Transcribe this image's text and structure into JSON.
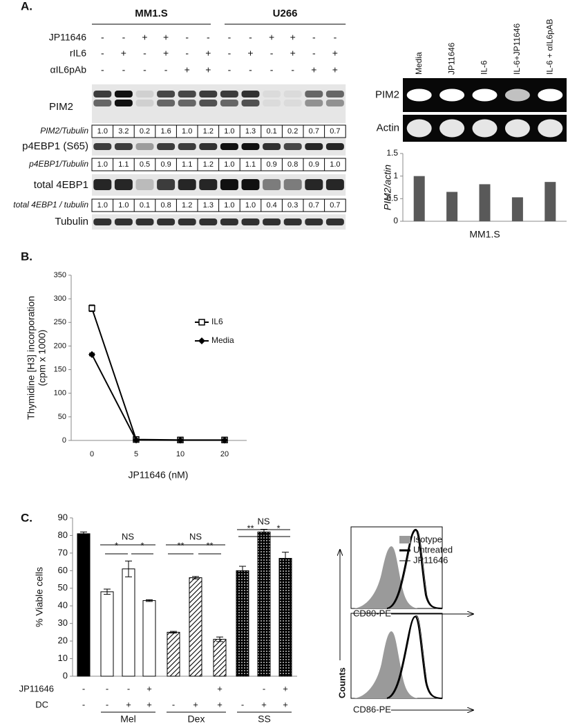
{
  "panel_a": {
    "label": "A.",
    "groups": [
      "MM1.S",
      "U266"
    ],
    "treatments": [
      {
        "name": "JP11646",
        "signs": [
          "-",
          "-",
          "+",
          "+",
          "-",
          "-",
          "-",
          "-",
          "+",
          "+",
          "-",
          "-"
        ]
      },
      {
        "name": "rIL6",
        "signs": [
          "-",
          "+",
          "-",
          "+",
          "-",
          "+",
          "-",
          "+",
          "-",
          "+",
          "-",
          "+"
        ]
      },
      {
        "name": "αIL6pAb",
        "signs": [
          "-",
          "-",
          "-",
          "-",
          "+",
          "+",
          "-",
          "-",
          "-",
          "-",
          "+",
          "+"
        ]
      }
    ],
    "blots": [
      {
        "name": "PIM2",
        "ratio_name": "PIM2/Tubulin",
        "ratios": [
          "1.0",
          "3.2",
          "0.2",
          "1.6",
          "1.0",
          "1.2",
          "1.0",
          "1.3",
          "0.1",
          "0.2",
          "0.7",
          "0.7"
        ]
      },
      {
        "name": "p4EBP1 (S65)",
        "ratio_name": "p4EBP1/Tubulin",
        "ratios": [
          "1.0",
          "1.1",
          "0.5",
          "0.9",
          "1.1",
          "1.2",
          "1.0",
          "1.1",
          "0.9",
          "0.8",
          "0.9",
          "1.0"
        ]
      },
      {
        "name": "total 4EBP1",
        "ratio_name": "total 4EBP1 / tubulin",
        "ratios": [
          "1.0",
          "1.0",
          "0.1",
          "0.8",
          "1.2",
          "1.3",
          "1.0",
          "1.0",
          "0.4",
          "0.3",
          "0.7",
          "0.7"
        ]
      },
      {
        "name": "Tubulin"
      }
    ],
    "gel": {
      "lanes": [
        "Media",
        "JP11646",
        "IL-6",
        "IL-6+JP11646",
        "IL-6 + αIL6pAB"
      ],
      "rows": [
        "PIM2",
        "Actin"
      ]
    }
  },
  "panel_b": {
    "label": "B."
  },
  "panel_c": {
    "label": "C.",
    "flow": {
      "legend": [
        "Isotype",
        "Untreated",
        "JP11646"
      ],
      "xlabels": [
        "CD80-PE",
        "CD86-PE"
      ],
      "ylabel": "Counts"
    }
  },
  "chart_data": [
    {
      "type": "bar",
      "ylabel": "PIM2/actin",
      "xlabel": "MM1.S",
      "categories": [
        null,
        null,
        null,
        null,
        null
      ],
      "values": [
        1.0,
        0.65,
        0.82,
        0.53,
        0.87
      ],
      "color": "#595959",
      "ylim": [
        0,
        1.5
      ],
      "yticks": [
        0,
        0.5,
        1,
        1.5
      ]
    },
    {
      "type": "line",
      "ylabel": [
        "Thymidine [H3] incorporation",
        "(cpm x 1000)"
      ],
      "xlabel": "JP11646 (nM)",
      "categories": [
        "0",
        "5",
        "10",
        "20"
      ],
      "ylim": [
        0,
        350
      ],
      "yticks": [
        0,
        50,
        100,
        150,
        200,
        250,
        300,
        350
      ],
      "series": [
        {
          "name": "IL6",
          "color": "#000000",
          "marker": "square-open",
          "values": [
            280,
            2,
            1,
            1
          ],
          "errors": [
            7,
            1,
            1,
            1
          ]
        },
        {
          "name": "Media",
          "color": "#000000",
          "marker": "diamond",
          "values": [
            182,
            1,
            0.5,
            0.5
          ],
          "errors": [
            3,
            1,
            1,
            1
          ]
        }
      ]
    },
    {
      "type": "bar",
      "ylabel": "% Viable cells",
      "categories": [
        null,
        null,
        null,
        null,
        null,
        null,
        null,
        null,
        null,
        null
      ],
      "values": [
        81,
        48,
        61,
        43,
        25,
        56,
        21,
        60,
        82,
        67
      ],
      "errors": [
        1,
        1.5,
        4.5,
        0.5,
        0.5,
        0.7,
        1.3,
        2.5,
        1.5,
        3.5
      ],
      "fills": [
        "black",
        "white",
        "white",
        "white",
        "hatch",
        "hatch",
        "hatch",
        "dots",
        "dots",
        "dots"
      ],
      "ylim": [
        0,
        90
      ],
      "yticks": [
        0,
        10,
        20,
        30,
        40,
        50,
        60,
        70,
        80,
        90
      ],
      "rows": [
        {
          "name": "JP11646",
          "labels": [
            "-",
            "-",
            "-",
            "+",
            null,
            null,
            "+",
            null,
            "-",
            "+"
          ]
        },
        {
          "name": "DC",
          "labels": [
            "-",
            "-",
            "+",
            "+",
            "-",
            "+",
            "+",
            "-",
            "+",
            "+"
          ]
        }
      ],
      "groups": [
        "Mel",
        "Dex",
        "SS"
      ],
      "annotations": [
        "NS",
        "*",
        "*",
        "NS",
        "**",
        "**",
        "NS",
        "**",
        "*"
      ]
    }
  ]
}
